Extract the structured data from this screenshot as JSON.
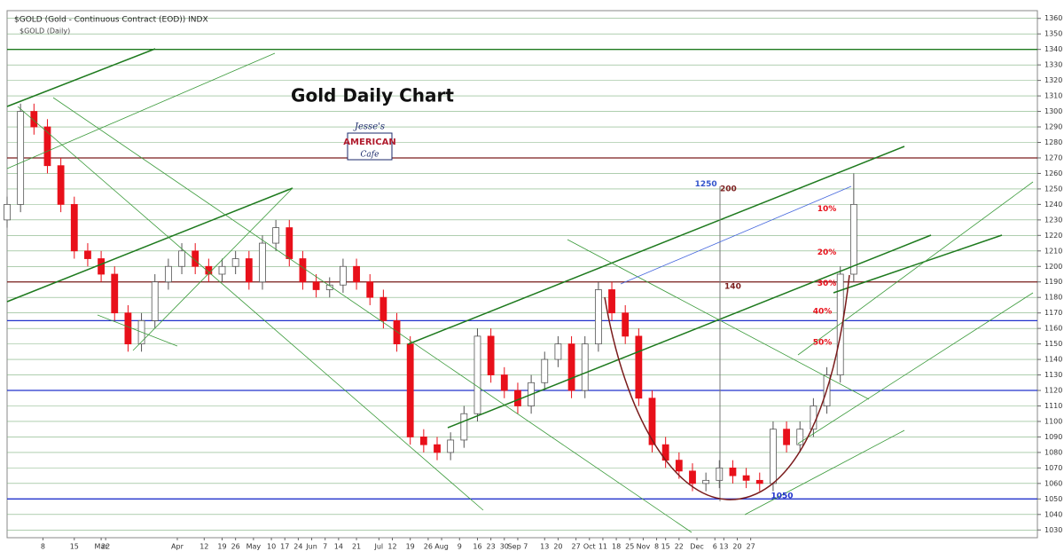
{
  "header": {
    "symbol": "$GOLD (Gold - Continuous Contract (EOD)) INDX",
    "period": "$GOLD (Daily)"
  },
  "logo": {
    "line1": "Jesse's",
    "line2": "AMERICAN",
    "line3": "Cafe"
  },
  "chart_data": {
    "type": "candlestick",
    "title": "Gold Daily Chart",
    "candles": {
      "x": [
        0,
        3,
        6,
        9,
        12,
        15,
        18,
        21,
        24,
        27,
        30,
        33,
        36,
        39,
        42,
        45,
        48,
        51,
        54,
        57,
        60,
        63,
        66,
        69,
        72,
        75,
        78,
        81,
        84,
        87,
        90,
        93,
        96,
        99,
        102,
        105,
        108,
        111,
        114,
        117,
        120,
        123,
        126,
        129,
        132,
        135,
        138,
        141,
        144,
        147,
        150,
        153,
        156,
        159,
        162,
        165,
        168,
        171,
        174,
        177,
        180,
        183,
        186,
        189
      ],
      "open": [
        1230,
        1240,
        1300,
        1290,
        1265,
        1240,
        1210,
        1205,
        1195,
        1170,
        1150,
        1165,
        1190,
        1200,
        1210,
        1200,
        1195,
        1200,
        1205,
        1190,
        1215,
        1225,
        1205,
        1190,
        1185,
        1188,
        1200,
        1190,
        1180,
        1165,
        1150,
        1090,
        1085,
        1080,
        1088,
        1105,
        1155,
        1130,
        1120,
        1110,
        1125,
        1140,
        1150,
        1120,
        1150,
        1185,
        1170,
        1155,
        1115,
        1085,
        1075,
        1068,
        1060,
        1062,
        1070,
        1065,
        1062,
        1060,
        1095,
        1085,
        1095,
        1110,
        1130,
        1195
      ],
      "high": [
        1245,
        1305,
        1305,
        1295,
        1270,
        1245,
        1215,
        1210,
        1200,
        1175,
        1170,
        1195,
        1205,
        1215,
        1215,
        1205,
        1205,
        1210,
        1210,
        1220,
        1230,
        1230,
        1210,
        1195,
        1193,
        1205,
        1205,
        1195,
        1185,
        1170,
        1155,
        1095,
        1090,
        1093,
        1110,
        1160,
        1160,
        1135,
        1125,
        1130,
        1145,
        1155,
        1155,
        1155,
        1190,
        1190,
        1175,
        1160,
        1120,
        1090,
        1080,
        1073,
        1067,
        1075,
        1075,
        1070,
        1067,
        1100,
        1100,
        1100,
        1115,
        1135,
        1200,
        1260
      ],
      "low": [
        1225,
        1235,
        1285,
        1260,
        1235,
        1205,
        1200,
        1190,
        1165,
        1145,
        1145,
        1160,
        1185,
        1195,
        1195,
        1190,
        1190,
        1195,
        1185,
        1185,
        1210,
        1200,
        1185,
        1180,
        1180,
        1183,
        1185,
        1175,
        1160,
        1145,
        1085,
        1080,
        1075,
        1075,
        1083,
        1100,
        1125,
        1115,
        1105,
        1105,
        1120,
        1135,
        1115,
        1115,
        1145,
        1165,
        1150,
        1110,
        1080,
        1070,
        1063,
        1055,
        1055,
        1057,
        1060,
        1057,
        1055,
        1055,
        1080,
        1080,
        1090,
        1105,
        1125,
        1190
      ],
      "close": [
        1240,
        1300,
        1290,
        1265,
        1240,
        1210,
        1205,
        1195,
        1170,
        1150,
        1165,
        1190,
        1200,
        1210,
        1200,
        1195,
        1200,
        1205,
        1190,
        1215,
        1225,
        1205,
        1190,
        1185,
        1188,
        1200,
        1190,
        1180,
        1165,
        1150,
        1090,
        1085,
        1080,
        1088,
        1105,
        1155,
        1130,
        1120,
        1110,
        1125,
        1140,
        1150,
        1120,
        1150,
        1185,
        1170,
        1155,
        1115,
        1085,
        1075,
        1068,
        1060,
        1062,
        1070,
        1065,
        1062,
        1060,
        1095,
        1085,
        1095,
        1110,
        1130,
        1195,
        1240
      ],
      "up_color": "#ffffff",
      "down_color": "#e8101a"
    },
    "xlim": [
      0,
      230
    ],
    "xticks": [
      {
        "value": 21,
        "label": "Mar"
      },
      8,
      15,
      22,
      {
        "value": 38,
        "label": "Apr"
      },
      {
        "value": 44,
        "label": "12"
      },
      {
        "value": 48,
        "label": "19"
      },
      {
        "value": 51,
        "label": "26"
      },
      {
        "value": 55,
        "label": "May"
      },
      {
        "value": 59,
        "label": "10"
      },
      {
        "value": 62,
        "label": "17"
      },
      {
        "value": 65,
        "label": "24"
      },
      {
        "value": 68,
        "label": "Jun"
      },
      {
        "value": 71,
        "label": "7"
      },
      {
        "value": 74,
        "label": "14"
      },
      {
        "value": 78,
        "label": "21"
      },
      {
        "value": 83,
        "label": "Jul"
      },
      {
        "value": 86,
        "label": "12"
      },
      {
        "value": 90,
        "label": "19"
      },
      {
        "value": 94,
        "label": "26"
      },
      {
        "value": 97,
        "label": "Aug"
      },
      {
        "value": 101,
        "label": "9"
      },
      {
        "value": 105,
        "label": "16"
      },
      {
        "value": 108,
        "label": "23"
      },
      {
        "value": 111,
        "label": "30"
      },
      {
        "value": 114,
        "label": "Sep 7"
      },
      {
        "value": 120,
        "label": "13"
      },
      {
        "value": 123,
        "label": "20"
      },
      {
        "value": 127,
        "label": "27"
      },
      {
        "value": 130,
        "label": "Oct"
      },
      {
        "value": 133,
        "label": "11"
      },
      {
        "value": 136,
        "label": "18"
      },
      {
        "value": 139,
        "label": "25"
      },
      {
        "value": 142,
        "label": "Nov"
      },
      {
        "value": 145,
        "label": "8"
      },
      {
        "value": 147,
        "label": "15"
      },
      {
        "value": 150,
        "label": "22"
      },
      {
        "value": 154,
        "label": "Dec"
      },
      {
        "value": 158,
        "label": "6"
      },
      {
        "value": 160,
        "label": "13"
      },
      {
        "value": 163,
        "label": "20"
      },
      {
        "value": 166,
        "label": "27"
      }
    ],
    "ylim": [
      1025,
      1365
    ],
    "yticks": [
      1030,
      1040,
      1050,
      1060,
      1070,
      1080,
      1090,
      1100,
      1110,
      1120,
      1130,
      1140,
      1150,
      1160,
      1170,
      1180,
      1190,
      1200,
      1210,
      1220,
      1230,
      1240,
      1250,
      1260,
      1270,
      1280,
      1290,
      1300,
      1310,
      1320,
      1330,
      1340,
      1350,
      1360
    ],
    "grid": true,
    "grid_color": "#7fb07f",
    "levels": [
      {
        "value": 1340,
        "color": "#1e7a1e"
      },
      {
        "value": 1270,
        "color": "#7a1c1c"
      },
      {
        "value": 1190,
        "color": "#7a1c1c"
      },
      {
        "value": 1165,
        "color": "#2233cc"
      },
      {
        "value": 1120,
        "color": "#2233cc"
      },
      {
        "value": 1050,
        "color": "#2233cc"
      }
    ],
    "annotations": [
      {
        "text": "1250",
        "x": 156,
        "y": 1253,
        "color": "#3355cc"
      },
      {
        "text": "200",
        "x": 161,
        "y": 1250,
        "color": "#7a1c1c"
      },
      {
        "text": "140",
        "x": 162,
        "y": 1187,
        "color": "#7a1c1c"
      },
      {
        "text": "10%",
        "x": 183,
        "y": 1237,
        "color": "#e8101a"
      },
      {
        "text": "20%",
        "x": 183,
        "y": 1209,
        "color": "#e8101a"
      },
      {
        "text": "30%",
        "x": 183,
        "y": 1189,
        "color": "#e8101a"
      },
      {
        "text": "40%",
        "x": 182,
        "y": 1171,
        "color": "#e8101a"
      },
      {
        "text": "50%",
        "x": 182,
        "y": 1151,
        "color": "#e8101a"
      },
      {
        "text": "1050",
        "x": 173,
        "y": 1052,
        "color": "#2233cc"
      }
    ]
  }
}
